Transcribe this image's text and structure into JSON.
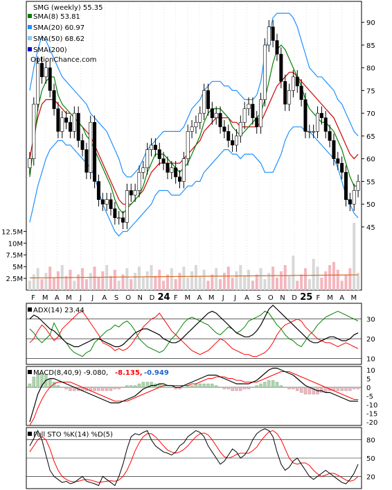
{
  "chart_data": [
    {
      "type": "candlestick",
      "panel": "price",
      "ticker_label": "SMG (weekly) 55.35",
      "watermark": "OptionChance.com",
      "legend": [
        {
          "label": "SMA(8) 53.81",
          "color": "#008000"
        },
        {
          "label": "SMA(20) 60.97",
          "color": "#1e90ff"
        },
        {
          "label": "SMA(50) 68.62",
          "color": "#87ceeb"
        },
        {
          "label": "SMA(200)",
          "color": "#0000cd"
        }
      ],
      "x_ticks": [
        "F",
        "M",
        "A",
        "M",
        "J",
        "J",
        "A",
        "S",
        "O",
        "N",
        "D",
        "24",
        "F",
        "M",
        "A",
        "M",
        "J",
        "J",
        "A",
        "S",
        "O",
        "N",
        "D",
        "25",
        "F",
        "M",
        "A",
        "M"
      ],
      "y_ticks": [
        45,
        50,
        55,
        60,
        65,
        70,
        75,
        80,
        85,
        90
      ],
      "ylim": [
        43,
        94
      ],
      "series": [
        {
          "name": "close",
          "values": [
            60,
            72,
            81,
            78,
            80,
            75,
            71,
            66,
            69,
            68,
            66,
            70,
            64,
            62,
            57,
            68,
            55,
            51,
            50,
            51,
            49,
            47,
            47,
            46,
            53,
            52,
            53,
            57,
            58,
            62,
            63,
            62,
            60,
            59,
            57,
            58,
            56,
            55,
            60,
            66,
            67,
            68,
            70,
            75,
            71,
            69,
            70,
            67,
            66,
            64,
            63,
            65,
            68,
            71,
            72,
            69,
            67,
            73,
            85,
            89,
            86,
            83,
            77,
            72,
            75,
            78,
            76,
            73,
            66,
            66,
            66,
            70,
            69,
            66,
            64,
            60,
            59,
            57,
            51,
            50,
            53,
            55
          ]
        }
      ],
      "sma8": [
        56,
        63,
        71,
        75,
        77,
        78,
        78,
        74,
        72,
        71,
        70,
        69,
        68,
        67,
        65,
        64,
        62,
        60,
        58,
        56,
        54,
        51,
        49,
        48,
        49,
        50,
        51,
        52,
        54,
        57,
        59,
        61,
        61,
        61,
        60,
        59,
        58,
        57,
        58,
        59,
        61,
        63,
        65,
        68,
        70,
        71,
        71,
        71,
        70,
        69,
        67,
        66,
        65,
        66,
        67,
        68,
        69,
        70,
        73,
        77,
        81,
        84,
        85,
        84,
        82,
        80,
        78,
        76,
        73,
        71,
        70,
        69,
        68,
        68,
        67,
        66,
        64,
        62,
        59,
        56,
        54,
        54
      ],
      "sma20": [
        {
          "mid": [
            60,
            65,
            69,
            72,
            73,
            73,
            73,
            72,
            71,
            70,
            70,
            69,
            68,
            67,
            66,
            65,
            63,
            61,
            59,
            57,
            55,
            53,
            51,
            50,
            50,
            50,
            51,
            52,
            53,
            55,
            57,
            58,
            59,
            59,
            59,
            59,
            59,
            59,
            60,
            61,
            62,
            63,
            64,
            66,
            67,
            68,
            69,
            69,
            69,
            69,
            68,
            68,
            67,
            67,
            67,
            67,
            67,
            68,
            70,
            72,
            74,
            76,
            77,
            78,
            79,
            79,
            78,
            77,
            76,
            75,
            74,
            73,
            72,
            71,
            70,
            69,
            67,
            65,
            63,
            61,
            60,
            61
          ],
          "up": [
            75,
            80,
            84,
            87,
            86,
            84,
            82,
            80,
            78,
            77,
            76,
            75,
            74,
            73,
            72,
            70,
            69,
            68,
            67,
            66,
            64,
            62,
            60,
            57,
            56,
            56,
            57,
            58,
            60,
            62,
            63,
            64,
            65,
            66,
            66,
            66,
            66,
            66,
            67,
            69,
            71,
            72,
            73,
            75,
            76,
            77,
            77,
            77,
            76,
            76,
            75,
            75,
            74,
            73,
            73,
            73,
            74,
            77,
            83,
            87,
            91,
            92,
            92,
            92,
            92,
            91,
            89,
            86,
            83,
            80,
            79,
            78,
            78,
            77,
            76,
            75,
            73,
            72,
            70,
            68,
            66,
            65
          ],
          "dn": [
            46,
            50,
            54,
            57,
            60,
            62,
            63,
            64,
            64,
            63,
            63,
            62,
            61,
            60,
            59,
            58,
            56,
            53,
            50,
            48,
            46,
            44,
            43,
            44,
            44,
            45,
            46,
            47,
            48,
            49,
            50,
            52,
            53,
            53,
            53,
            52,
            52,
            52,
            53,
            54,
            54,
            55,
            55,
            57,
            58,
            59,
            60,
            61,
            62,
            62,
            61,
            61,
            60,
            61,
            61,
            61,
            60,
            59,
            57,
            57,
            57,
            59,
            61,
            64,
            66,
            67,
            67,
            67,
            66,
            66,
            65,
            64,
            63,
            62,
            61,
            60,
            58,
            55,
            52,
            50,
            48,
            47
          ]
        }
      ],
      "sma50": [
        78,
        78,
        77,
        76,
        76,
        75,
        75,
        74
      ],
      "sma200_note": "",
      "volume_ticks": [
        "2.5M",
        "5M",
        "7.5M",
        "10M",
        "12.5M"
      ],
      "volume_ylim": [
        0,
        13
      ]
    },
    {
      "type": "line",
      "panel": "adx",
      "label": "ADX(14) 23.44",
      "y_ticks": [
        10,
        20,
        30
      ],
      "ylim": [
        7,
        38
      ],
      "adx": [
        30,
        32,
        31,
        29,
        27,
        25,
        24,
        22,
        20,
        18,
        17,
        16,
        16,
        17,
        18,
        19,
        20,
        20,
        19,
        18,
        17,
        16,
        16,
        17,
        19,
        21,
        23,
        24,
        25,
        25,
        24,
        23,
        22,
        20,
        19,
        18,
        18,
        19,
        21,
        23,
        25,
        27,
        29,
        31,
        33,
        34,
        33,
        31,
        29,
        27,
        25,
        23,
        22,
        21,
        21,
        22,
        24,
        27,
        31,
        35,
        37,
        35,
        33,
        31,
        29,
        27,
        25,
        23,
        21,
        19,
        18,
        18,
        19,
        20,
        21,
        21,
        20,
        19,
        19,
        20,
        22,
        23
      ],
      "pdi": [
        25,
        23,
        20,
        18,
        20,
        22,
        28,
        24,
        20,
        18,
        15,
        13,
        12,
        11,
        13,
        14,
        18,
        20,
        22,
        24,
        25,
        27,
        26,
        28,
        29,
        27,
        24,
        20,
        18,
        16,
        15,
        14,
        13,
        14,
        17,
        20,
        22,
        25,
        28,
        30,
        31,
        30,
        29,
        28,
        27,
        25,
        23,
        22,
        24,
        26,
        25,
        23,
        24,
        26,
        29,
        30,
        31,
        32,
        34,
        33,
        30,
        27,
        25,
        22,
        20,
        19,
        17,
        16,
        19,
        22,
        24,
        27,
        29,
        31,
        32,
        33,
        34,
        33,
        32,
        31,
        30,
        29
      ],
      "mdi": [
        18,
        20,
        24,
        27,
        25,
        22,
        19,
        21,
        25,
        27,
        29,
        31,
        33,
        34,
        31,
        28,
        25,
        22,
        18,
        17,
        16,
        14,
        15,
        14,
        15,
        17,
        20,
        23,
        26,
        28,
        30,
        31,
        33,
        30,
        27,
        24,
        22,
        20,
        18,
        16,
        14,
        13,
        12,
        13,
        14,
        16,
        18,
        20,
        19,
        17,
        15,
        14,
        13,
        12,
        12,
        11,
        11,
        12,
        13,
        15,
        18,
        22,
        25,
        27,
        28,
        29,
        30,
        29,
        26,
        24,
        22,
        20,
        19,
        18,
        18,
        17,
        16,
        17,
        18,
        17,
        16,
        15
      ]
    },
    {
      "type": "line",
      "panel": "macd",
      "label": "MACD(8,40,9) -9.080,",
      "macd_value": "-8.135,",
      "signal_value": "-0.949",
      "y_ticks": [
        -20,
        -15,
        -10,
        -5,
        0,
        5,
        10
      ],
      "ylim": [
        -22,
        12
      ],
      "macd": [
        -20,
        -12,
        -4,
        1,
        4,
        5,
        5,
        4,
        3,
        2,
        1,
        0,
        -1,
        -2,
        -3,
        -4,
        -5,
        -6,
        -7,
        -8,
        -9,
        -9,
        -9,
        -8,
        -7,
        -6,
        -5,
        -3,
        -1,
        0,
        1,
        1,
        2,
        2,
        1,
        1,
        0,
        0,
        1,
        2,
        3,
        4,
        5,
        6,
        7,
        7,
        7,
        6,
        5,
        4,
        3,
        2,
        2,
        2,
        2,
        3,
        4,
        6,
        8,
        10,
        11,
        11,
        10,
        9,
        8,
        7,
        5,
        3,
        1,
        0,
        -1,
        -2,
        -2,
        -3,
        -3,
        -4,
        -5,
        -6,
        -7,
        -8,
        -8,
        -8
      ],
      "signal": [
        -22,
        -18,
        -12,
        -7,
        -3,
        0,
        2,
        3,
        3,
        3,
        3,
        2,
        1,
        0,
        -1,
        -2,
        -3,
        -4,
        -5,
        -6,
        -7,
        -8,
        -8,
        -8,
        -8,
        -7,
        -6,
        -5,
        -4,
        -3,
        -2,
        -1,
        0,
        1,
        1,
        1,
        1,
        1,
        1,
        1,
        2,
        2,
        3,
        4,
        5,
        5,
        6,
        6,
        6,
        5,
        5,
        4,
        4,
        3,
        3,
        3,
        3,
        4,
        5,
        6,
        7,
        8,
        9,
        9,
        9,
        8,
        7,
        6,
        5,
        4,
        3,
        2,
        1,
        0,
        -1,
        -2,
        -3,
        -4,
        -5,
        -6,
        -7,
        -7
      ]
    },
    {
      "type": "line",
      "panel": "stochastic",
      "label": "Full STO %K(14) %D(5)",
      "y_ticks": [
        20,
        50,
        80
      ],
      "ylim": [
        0,
        100
      ],
      "k": [
        70,
        82,
        95,
        80,
        55,
        30,
        20,
        15,
        10,
        12,
        8,
        10,
        15,
        20,
        12,
        10,
        8,
        5,
        20,
        15,
        10,
        5,
        20,
        40,
        65,
        85,
        90,
        88,
        92,
        95,
        80,
        70,
        65,
        60,
        58,
        55,
        60,
        70,
        75,
        85,
        90,
        95,
        92,
        85,
        70,
        60,
        50,
        40,
        45,
        55,
        65,
        60,
        50,
        55,
        65,
        80,
        90,
        95,
        98,
        95,
        85,
        60,
        40,
        30,
        35,
        45,
        50,
        40,
        30,
        20,
        15,
        20,
        25,
        30,
        25,
        20,
        15,
        10,
        8,
        15,
        25,
        40
      ],
      "d": [
        60,
        70,
        80,
        85,
        80,
        65,
        45,
        30,
        20,
        15,
        12,
        11,
        12,
        14,
        15,
        14,
        12,
        10,
        11,
        12,
        13,
        12,
        14,
        20,
        30,
        45,
        62,
        75,
        85,
        90,
        90,
        85,
        78,
        70,
        63,
        60,
        58,
        60,
        64,
        70,
        78,
        85,
        90,
        91,
        88,
        80,
        70,
        60,
        52,
        50,
        52,
        56,
        58,
        58,
        58,
        62,
        68,
        78,
        86,
        93,
        95,
        90,
        80,
        65,
        50,
        42,
        40,
        42,
        42,
        38,
        30,
        24,
        20,
        22,
        25,
        25,
        22,
        18,
        14,
        12,
        14,
        20
      ]
    }
  ]
}
